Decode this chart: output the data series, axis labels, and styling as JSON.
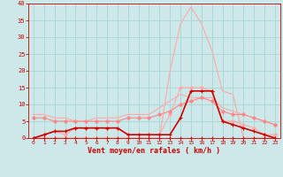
{
  "x": [
    0,
    1,
    2,
    3,
    4,
    5,
    6,
    7,
    8,
    9,
    10,
    11,
    12,
    13,
    14,
    15,
    16,
    17,
    18,
    19,
    20,
    21,
    22,
    23
  ],
  "series": [
    {
      "name": "rafales_light_top",
      "color": "#ffaaaa",
      "lw": 0.8,
      "marker": null,
      "ms": 0,
      "y": [
        7,
        7,
        6,
        6,
        5,
        5,
        6,
        6,
        6,
        7,
        7,
        7,
        9,
        11,
        13,
        12,
        12,
        12,
        9,
        8,
        7,
        6,
        5,
        4
      ]
    },
    {
      "name": "moyen_light_dots",
      "color": "#ffaaaa",
      "lw": 0.8,
      "marker": "D",
      "ms": 2,
      "y": [
        0,
        1,
        2,
        1,
        3,
        3,
        3,
        3,
        3,
        1,
        1,
        1,
        1,
        7,
        15,
        15,
        15,
        14,
        5,
        5,
        4,
        3,
        1,
        1
      ]
    },
    {
      "name": "rafales_light_peak",
      "color": "#ffaaaa",
      "lw": 0.8,
      "marker": null,
      "ms": 0,
      "y": [
        0,
        0,
        0,
        0,
        0,
        0,
        0,
        0,
        0,
        0,
        0,
        0,
        0,
        20,
        34,
        39,
        34,
        26,
        14,
        13,
        0,
        0,
        0,
        0
      ]
    },
    {
      "name": "mid_pink_line",
      "color": "#ff8888",
      "lw": 0.8,
      "marker": "D",
      "ms": 2,
      "y": [
        6,
        6,
        5,
        5,
        5,
        5,
        5,
        5,
        5,
        6,
        6,
        6,
        7,
        8,
        10,
        11,
        12,
        11,
        8,
        7,
        7,
        6,
        5,
        4
      ]
    },
    {
      "name": "dark_red_main",
      "color": "#cc0000",
      "lw": 1.2,
      "marker": "+",
      "ms": 3.5,
      "y": [
        0,
        1,
        2,
        2,
        3,
        3,
        3,
        3,
        3,
        1,
        1,
        1,
        1,
        1,
        6,
        14,
        14,
        14,
        5,
        4,
        3,
        2,
        1,
        0
      ]
    },
    {
      "name": "bottom_line",
      "color": "#ff0000",
      "lw": 0.8,
      "marker": "+",
      "ms": 2.5,
      "y": [
        0,
        0,
        0,
        0,
        0,
        0,
        0,
        0,
        0,
        0,
        0,
        0,
        0,
        0,
        0,
        0,
        0,
        0,
        0,
        0,
        0,
        0,
        0,
        0
      ]
    }
  ],
  "xlabel": "Vent moyen/en rafales ( km/h )",
  "xlim": [
    -0.5,
    23.5
  ],
  "ylim": [
    0,
    40
  ],
  "yticks": [
    0,
    5,
    10,
    15,
    20,
    25,
    30,
    35,
    40
  ],
  "xticks": [
    0,
    1,
    2,
    3,
    4,
    5,
    6,
    7,
    8,
    9,
    10,
    11,
    12,
    13,
    14,
    15,
    16,
    17,
    18,
    19,
    20,
    21,
    22,
    23
  ],
  "bg_color": "#cce8e8",
  "grid_color": "#aad4d4",
  "tick_color": "#cc0000",
  "label_color": "#cc0000"
}
